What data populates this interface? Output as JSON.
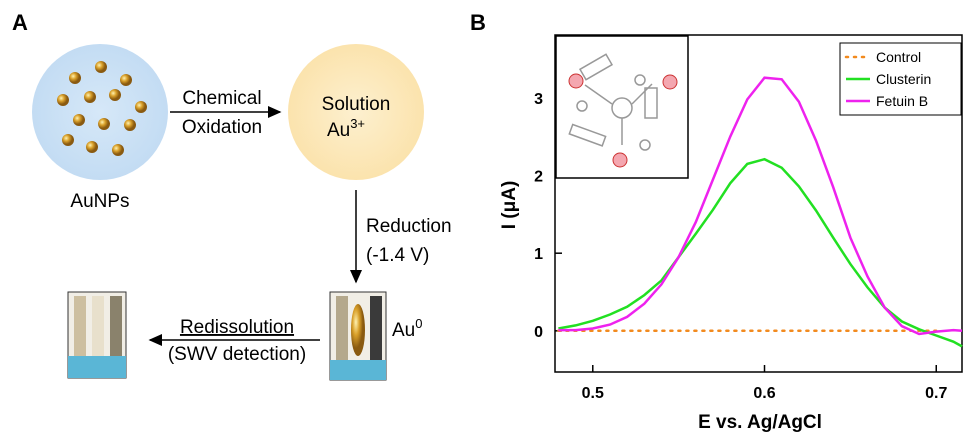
{
  "panel_a": {
    "label": "A",
    "step1_line1": "Chemical",
    "step1_line2": "Oxidation",
    "solution_line1": "Solution",
    "solution_base": "Au",
    "solution_sup": "3+",
    "particles": "AuNPs",
    "step2_line1": "Reduction",
    "step2_line2": "(-1.4 V)",
    "deposit_base": "Au",
    "deposit_sup": "0",
    "step3_line1": "Redissolution",
    "step3_line2": "(SWV detection)"
  },
  "chart_data": {
    "type": "line",
    "panel_label": "B",
    "x_label": "E vs. Ag/AgCl",
    "y_label": "I (μA)",
    "x": [
      0.48,
      0.49,
      0.5,
      0.51,
      0.52,
      0.53,
      0.54,
      0.55,
      0.56,
      0.57,
      0.58,
      0.59,
      0.6,
      0.61,
      0.62,
      0.63,
      0.64,
      0.65,
      0.66,
      0.67,
      0.68,
      0.69,
      0.7,
      0.71,
      0.715
    ],
    "series": [
      {
        "name": "Control",
        "color": "#f28a1e",
        "dashed": true,
        "values": [
          0,
          0,
          0,
          0,
          0,
          0,
          0,
          0,
          0,
          0,
          0,
          0,
          0,
          0,
          0,
          0,
          0,
          0,
          0,
          0,
          0,
          0,
          0,
          null,
          null
        ]
      },
      {
        "name": "Clusterin",
        "color": "#22e022",
        "values": [
          0.03,
          0.07,
          0.13,
          0.21,
          0.31,
          0.46,
          0.65,
          0.95,
          1.25,
          1.56,
          1.9,
          2.15,
          2.21,
          2.1,
          1.86,
          1.55,
          1.2,
          0.86,
          0.56,
          0.3,
          0.12,
          0.02,
          -0.06,
          -0.14,
          -0.2
        ]
      },
      {
        "name": "Fetuin B",
        "color": "#ee22ee",
        "values": [
          0.01,
          0.01,
          0.03,
          0.08,
          0.18,
          0.35,
          0.6,
          0.95,
          1.4,
          1.95,
          2.5,
          2.98,
          3.26,
          3.24,
          2.95,
          2.45,
          1.85,
          1.2,
          0.7,
          0.3,
          0.06,
          -0.04,
          -0.01,
          0.01,
          0
        ]
      }
    ],
    "xlim": [
      0.478,
      0.715
    ],
    "xticks": [
      0.5,
      0.6,
      0.7
    ],
    "ylim": [
      -0.53,
      3.81
    ],
    "yticks": [
      0,
      1,
      2,
      3
    ],
    "legend": "upper-right"
  }
}
